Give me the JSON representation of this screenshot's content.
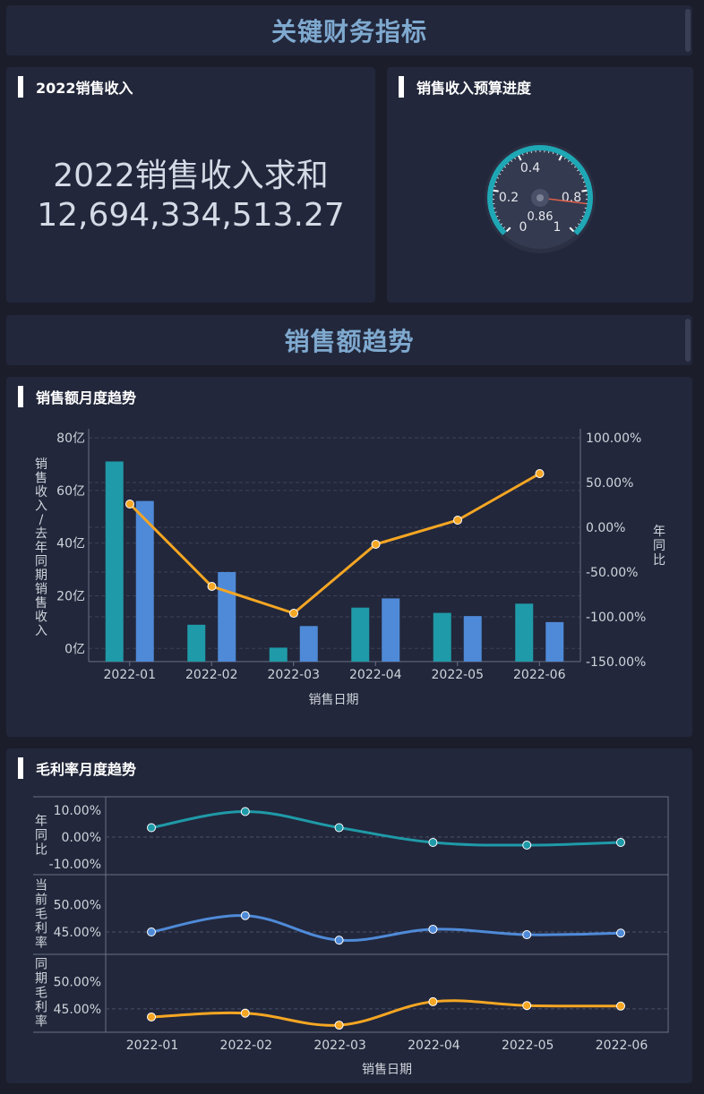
{
  "header1": {
    "title": "关键财务指标"
  },
  "header2": {
    "title": "销售额趋势"
  },
  "kpi_panel": {
    "title": "2022销售收入",
    "label": "2022销售收入求和",
    "value": "12,694,334,513.27"
  },
  "gauge_panel": {
    "title": "销售收入预算进度",
    "value": 0.86,
    "value_label": "0.86",
    "ticks": [
      "0",
      "0.2",
      "0.4",
      "0.8",
      "1"
    ],
    "accent": "#1ea7b5",
    "needle": "#e0604a"
  },
  "sales_panel": {
    "title": "销售额月度趋势"
  },
  "margin_panel": {
    "title": "毛利率月度趋势"
  },
  "chart_data": [
    {
      "type": "bar",
      "categories": [
        "2022-01",
        "2022-02",
        "2022-03",
        "2022-04",
        "2022-05",
        "2022-06"
      ],
      "series": [
        {
          "values": [
            71,
            9,
            0.3,
            15.5,
            13.5,
            17
          ],
          "color": "#1f9aa8"
        },
        {
          "values": [
            56,
            29,
            8.5,
            19,
            12.3,
            10
          ],
          "color": "#4f8ad8"
        },
        {
          "values": [
            26,
            -66,
            -96,
            -19,
            8,
            60
          ],
          "color": "#f5a623",
          "type": "line",
          "axis": "right"
        }
      ],
      "ylabel": "销售收入/去年同期销售收入",
      "y2label": "年同比",
      "xlabel": "销售日期",
      "yticks": [
        "0亿",
        "20亿",
        "40亿",
        "60亿",
        "80亿"
      ],
      "y2ticks": [
        "100.00%",
        "50.00%",
        "0.00%",
        "-50.00%",
        "-100.00%",
        "-150.00%"
      ],
      "ylim": [
        -5,
        80
      ],
      "y2lim": [
        -150,
        100
      ]
    },
    {
      "type": "line",
      "categories": [
        "2022-01",
        "2022-02",
        "2022-03",
        "2022-04",
        "2022-05",
        "2022-06"
      ],
      "xlabel": "销售日期",
      "panels": [
        {
          "ylabel": "年同比",
          "values": [
            3.5,
            9.5,
            3.5,
            -2.0,
            -3.0,
            -2.0
          ],
          "yticks": [
            "10.00%",
            "0.00%",
            "-10.00%"
          ],
          "ylim": [
            -14,
            15
          ],
          "color": "#1f9aa8"
        },
        {
          "ylabel": "当前毛利率",
          "values": [
            45.0,
            48.0,
            43.5,
            45.5,
            44.5,
            44.8
          ],
          "yticks": [
            "50.00%",
            "45.00%"
          ],
          "ylim": [
            40.9,
            55.5
          ],
          "color": "#4f8ad8"
        },
        {
          "ylabel": "同期毛利率",
          "values": [
            43.5,
            44.2,
            42.0,
            46.3,
            45.6,
            45.5
          ],
          "yticks": [
            "50.00%",
            "45.00%"
          ],
          "ylim": [
            40.7,
            55.0
          ],
          "color": "#f5a623"
        }
      ]
    }
  ]
}
